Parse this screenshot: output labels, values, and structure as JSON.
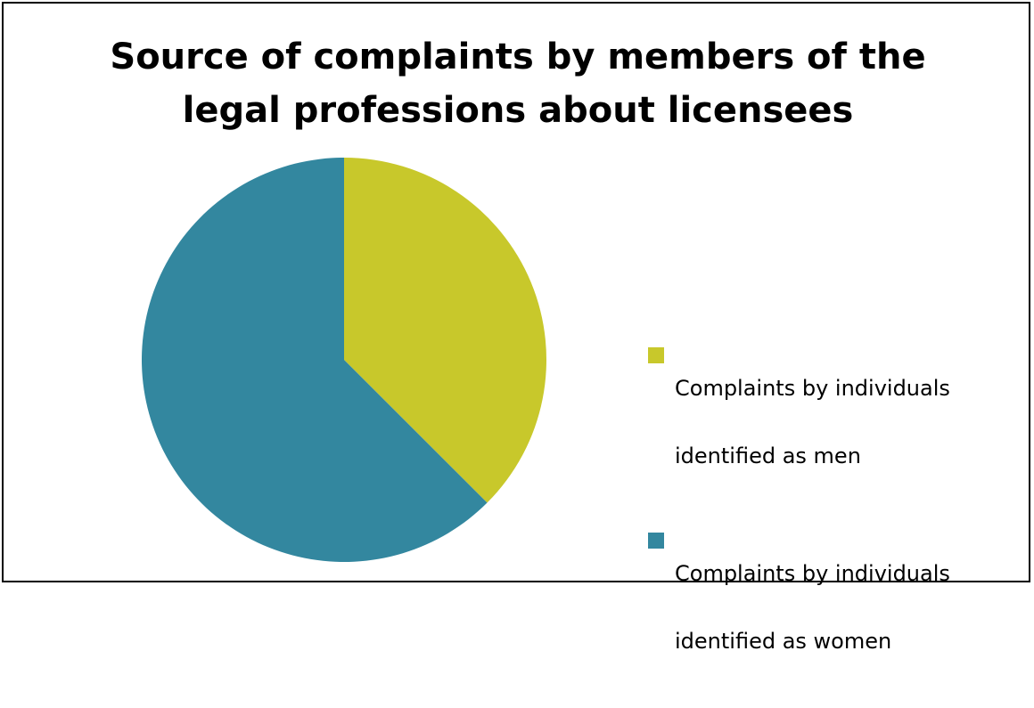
{
  "chart_data": {
    "type": "pie",
    "title": "Source of complaints by members of the legal professions about licensees",
    "title_lines": [
      "Source of complaints by members of the",
      "legal professions about licensees"
    ],
    "series": [
      {
        "name": "Complaints by individuals identified as men",
        "label_lines": [
          "Complaints by individuals",
          "identified as men"
        ],
        "value": 37.5,
        "color": "#c8c82b"
      },
      {
        "name": "Complaints by individuals identified as women",
        "label_lines": [
          "Complaints by individuals",
          "identified as women"
        ],
        "value": 62.5,
        "color": "#33879f"
      }
    ],
    "start_angle_deg": 0,
    "direction": "clockwise",
    "legend_position": "right"
  }
}
